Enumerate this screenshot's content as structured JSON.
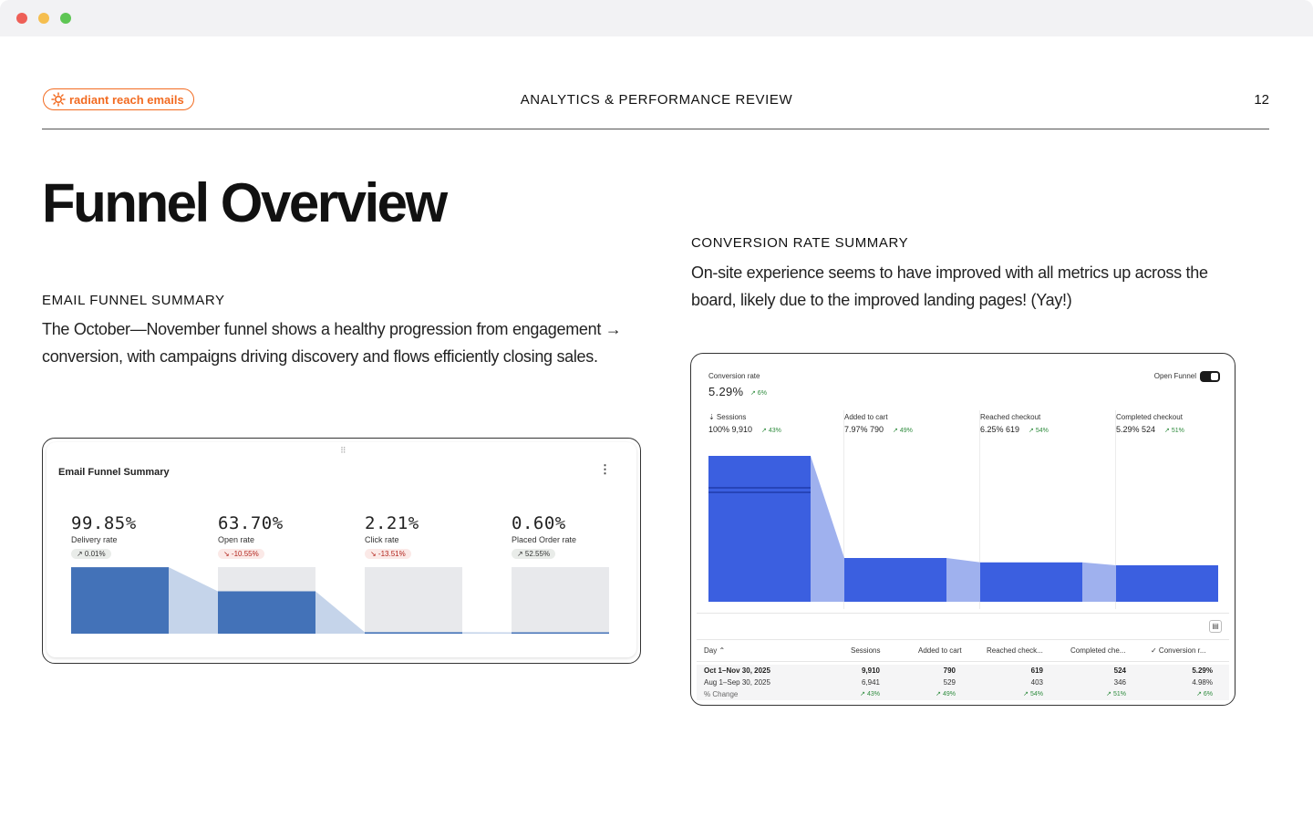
{
  "header": {
    "logo_text": "radiant reach emails",
    "title": "ANALYTICS & PERFORMANCE REVIEW",
    "page_number": "12"
  },
  "main": {
    "title": "Funnel Overview",
    "email_section": {
      "title": "EMAIL FUNNEL SUMMARY",
      "body": "The October—November funnel shows a healthy progression from engagement → conversion, with campaigns driving discovery and flows efficiently closing sales."
    },
    "conversion_section": {
      "title": "CONVERSION RATE SUMMARY",
      "body": "On-site experience seems to have improved with all metrics up across the board, likely due to the improved landing pages! (Yay!)"
    }
  },
  "email_card": {
    "title": "Email Funnel Summary",
    "metrics": [
      {
        "value": "99.85%",
        "label": "Delivery rate",
        "change": "0.01%",
        "direction": "up",
        "fill": 0.9985
      },
      {
        "value": "63.70%",
        "label": "Open rate",
        "change": "-10.55%",
        "direction": "down",
        "fill": 0.637
      },
      {
        "value": "2.21%",
        "label": "Click rate",
        "change": "-13.51%",
        "direction": "down",
        "fill": 0.0221
      },
      {
        "value": "0.60%",
        "label": "Placed Order rate",
        "change": "52.55%",
        "direction": "up",
        "fill": 0.006
      }
    ],
    "colors": {
      "bar": "#4372b8",
      "connector": "#c5d4ea",
      "track": "#e8e9ec"
    }
  },
  "conversion_card": {
    "title": "Conversion rate",
    "rate": "5.29%",
    "rate_change": "↗ 6%",
    "open_funnel_label": "Open Funnel",
    "steps": [
      {
        "name": "Sessions",
        "pct": "100%",
        "count": "9,910",
        "change": "↗ 43%",
        "fill": 1.0
      },
      {
        "name": "Added to cart",
        "pct": "7.97%",
        "count": "790",
        "change": "↗ 49%",
        "fill": 0.3
      },
      {
        "name": "Reached checkout",
        "pct": "6.25%",
        "count": "619",
        "change": "↗ 54%",
        "fill": 0.27
      },
      {
        "name": "Completed checkout",
        "pct": "5.29%",
        "count": "524",
        "change": "↗ 51%",
        "fill": 0.25
      }
    ],
    "colors": {
      "bar": "#3b5fe0",
      "connector": "#9fb1ee"
    },
    "table": {
      "headers": [
        "Day",
        "Sessions",
        "Added to cart",
        "Reached check...",
        "Completed che...",
        "Conversion r..."
      ],
      "rows": [
        {
          "label": "Oct 1–Nov 30, 2025",
          "values": [
            "9,910",
            "790",
            "619",
            "524",
            "5.29%"
          ]
        },
        {
          "label": "Aug 1–Sep 30, 2025",
          "values": [
            "6,941",
            "529",
            "403",
            "346",
            "4.98%"
          ]
        },
        {
          "label": "% Change",
          "values": [
            "↗ 43%",
            "↗ 49%",
            "↗ 54%",
            "↗ 51%",
            "↗ 6%"
          ]
        }
      ]
    }
  }
}
